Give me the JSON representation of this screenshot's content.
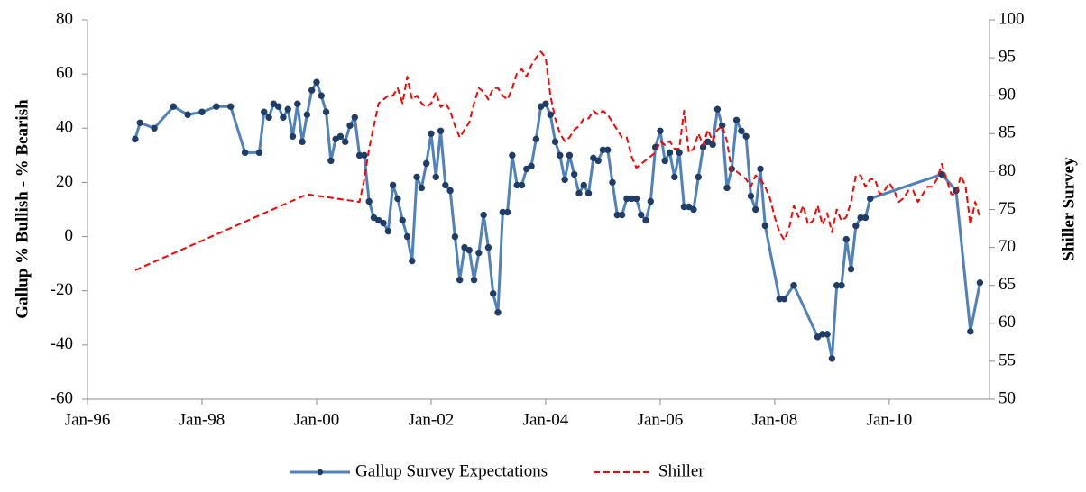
{
  "chart_data": {
    "type": "line",
    "y_title": "Gallup % Bullish - % Bearish",
    "y2_title": "Shiller Survey",
    "xlim": [
      "1996-01",
      "2011-10"
    ],
    "xticks": [
      {
        "value": "1996-01",
        "label": "Jan-96"
      },
      {
        "value": "1998-01",
        "label": "Jan-98"
      },
      {
        "value": "2000-01",
        "label": "Jan-00"
      },
      {
        "value": "2002-01",
        "label": "Jan-02"
      },
      {
        "value": "2004-01",
        "label": "Jan-04"
      },
      {
        "value": "2006-01",
        "label": "Jan-06"
      },
      {
        "value": "2008-01",
        "label": "Jan-08"
      },
      {
        "value": "2010-01",
        "label": "Jan-10"
      }
    ],
    "ylim": [
      -60,
      80
    ],
    "yticks": [
      -60,
      -40,
      -20,
      0,
      20,
      40,
      60,
      80
    ],
    "y2lim": [
      50,
      100
    ],
    "y2ticks": [
      50,
      55,
      60,
      65,
      70,
      75,
      80,
      85,
      90,
      95,
      100
    ],
    "grid": false,
    "legend": "bottom",
    "series": [
      {
        "name": "Gallup Survey Expectations",
        "color": "#4f81bd",
        "marker": true,
        "marker_color": "#1f3d66",
        "dashed": false,
        "axis": "y",
        "x": [
          "1996-11",
          "1996-12",
          "1997-03",
          "1997-07",
          "1997-10",
          "1998-01",
          "1998-04",
          "1998-07",
          "1998-10",
          "1999-01",
          "1999-02",
          "1999-03",
          "1999-04",
          "1999-05",
          "1999-06",
          "1999-07",
          "1999-08",
          "1999-09",
          "1999-10",
          "1999-11",
          "1999-12",
          "2000-01",
          "2000-02",
          "2000-03",
          "2000-04",
          "2000-05",
          "2000-06",
          "2000-07",
          "2000-08",
          "2000-09",
          "2000-10",
          "2000-11",
          "2000-12",
          "2001-01",
          "2001-02",
          "2001-03",
          "2001-04",
          "2001-05",
          "2001-06",
          "2001-07",
          "2001-08",
          "2001-09",
          "2001-10",
          "2001-11",
          "2001-12",
          "2002-01",
          "2002-02",
          "2002-03",
          "2002-04",
          "2002-05",
          "2002-06",
          "2002-07",
          "2002-08",
          "2002-09",
          "2002-10",
          "2002-11",
          "2002-12",
          "2003-01",
          "2003-02",
          "2003-03",
          "2003-04",
          "2003-05",
          "2003-06",
          "2003-07",
          "2003-08",
          "2003-09",
          "2003-10",
          "2003-11",
          "2003-12",
          "2004-01",
          "2004-02",
          "2004-03",
          "2004-04",
          "2004-05",
          "2004-06",
          "2004-07",
          "2004-08",
          "2004-09",
          "2004-10",
          "2004-11",
          "2004-12",
          "2005-01",
          "2005-02",
          "2005-03",
          "2005-04",
          "2005-05",
          "2005-06",
          "2005-07",
          "2005-08",
          "2005-09",
          "2005-10",
          "2005-11",
          "2005-12",
          "2006-01",
          "2006-02",
          "2006-03",
          "2006-04",
          "2006-05",
          "2006-06",
          "2006-07",
          "2006-08",
          "2006-09",
          "2006-10",
          "2006-11",
          "2006-12",
          "2007-01",
          "2007-02",
          "2007-03",
          "2007-04",
          "2007-05",
          "2007-06",
          "2007-07",
          "2007-08",
          "2007-09",
          "2007-10",
          "2007-11",
          "2008-02",
          "2008-03",
          "2008-05",
          "2008-10",
          "2008-11",
          "2008-12",
          "2009-01",
          "2009-02",
          "2009-03",
          "2009-04",
          "2009-05",
          "2009-06",
          "2009-07",
          "2009-08",
          "2009-09",
          "2010-12",
          "2011-03",
          "2011-06",
          "2011-08"
        ],
        "values": [
          36,
          42,
          40,
          48,
          45,
          46,
          48,
          48,
          31,
          31,
          46,
          44,
          49,
          48,
          44,
          47,
          37,
          49,
          35,
          45,
          54,
          57,
          52,
          46,
          28,
          36,
          37,
          35,
          41,
          44,
          30,
          30,
          13,
          7,
          6,
          5,
          2,
          19,
          14,
          6,
          0,
          -9,
          22,
          18,
          27,
          38,
          22,
          39,
          19,
          17,
          0,
          -16,
          -4,
          -5,
          -16,
          -6,
          8,
          -4,
          -21,
          -28,
          9,
          9,
          30,
          19,
          19,
          25,
          26,
          36,
          48,
          49,
          45,
          35,
          30,
          21,
          30,
          23,
          16,
          19,
          16,
          29,
          28,
          32,
          32,
          20,
          8,
          8,
          14,
          14,
          14,
          8,
          6,
          13,
          33,
          39,
          28,
          31,
          22,
          31,
          11,
          11,
          10,
          22,
          33,
          35,
          34,
          47,
          41,
          18,
          25,
          43,
          39,
          37,
          15,
          10,
          25,
          4,
          -23,
          -23,
          -18,
          -37,
          -36,
          -36,
          -45,
          -18,
          -18,
          -1,
          -12,
          4,
          7,
          7,
          14,
          23,
          17,
          -35,
          -17
        ]
      },
      {
        "name": "Shiller",
        "color": "#ff0000",
        "marker": false,
        "dashed": true,
        "axis": "y2",
        "x": [
          "1996-11",
          "1999-11",
          "2000-10",
          "2000-11",
          "2000-12",
          "2001-01",
          "2001-02",
          "2001-03",
          "2001-04",
          "2001-05",
          "2001-06",
          "2001-07",
          "2001-08",
          "2001-09",
          "2001-10",
          "2001-11",
          "2001-12",
          "2002-01",
          "2002-02",
          "2002-03",
          "2002-04",
          "2002-05",
          "2002-06",
          "2002-07",
          "2002-08",
          "2002-09",
          "2002-10",
          "2002-11",
          "2002-12",
          "2003-01",
          "2003-02",
          "2003-03",
          "2003-04",
          "2003-05",
          "2003-06",
          "2003-07",
          "2003-08",
          "2003-09",
          "2003-10",
          "2003-11",
          "2003-12",
          "2004-01",
          "2004-02",
          "2004-03",
          "2004-04",
          "2004-05",
          "2004-06",
          "2004-07",
          "2004-08",
          "2004-09",
          "2004-10",
          "2004-11",
          "2004-12",
          "2005-01",
          "2005-02",
          "2005-03",
          "2005-04",
          "2005-05",
          "2005-06",
          "2005-07",
          "2005-08",
          "2005-09",
          "2005-10",
          "2005-11",
          "2005-12",
          "2006-01",
          "2006-02",
          "2006-03",
          "2006-04",
          "2006-05",
          "2006-06",
          "2006-07",
          "2006-08",
          "2006-09",
          "2006-10",
          "2006-11",
          "2006-12",
          "2007-01",
          "2007-02",
          "2007-03",
          "2007-04",
          "2007-05",
          "2007-06",
          "2007-07",
          "2007-08",
          "2007-09",
          "2007-10",
          "2007-11",
          "2007-12",
          "2008-01",
          "2008-02",
          "2008-03",
          "2008-04",
          "2008-05",
          "2008-06",
          "2008-07",
          "2008-08",
          "2008-09",
          "2008-10",
          "2008-11",
          "2008-12",
          "2009-01",
          "2009-02",
          "2009-03",
          "2009-04",
          "2009-05",
          "2009-06",
          "2009-07",
          "2009-08",
          "2009-09",
          "2009-10",
          "2009-11",
          "2009-12",
          "2010-01",
          "2010-02",
          "2010-03",
          "2010-04",
          "2010-05",
          "2010-06",
          "2010-07",
          "2010-08",
          "2010-09",
          "2010-10",
          "2010-11",
          "2010-12",
          "2011-01",
          "2011-02",
          "2011-03",
          "2011-04",
          "2011-05",
          "2011-06",
          "2011-07",
          "2011-08"
        ],
        "values": [
          67,
          77,
          76,
          79,
          83,
          86,
          89,
          89.5,
          90,
          90,
          91,
          89,
          92.5,
          89.5,
          90,
          89,
          88.5,
          89,
          90.5,
          88.5,
          89,
          88,
          86,
          84.5,
          85.5,
          86.5,
          89,
          91,
          90.5,
          89.5,
          91,
          91,
          90,
          89.5,
          91,
          93,
          93.5,
          92.5,
          94,
          95,
          95.8,
          95,
          90,
          87,
          85,
          84,
          84.5,
          85.5,
          86,
          87,
          87,
          88,
          87.5,
          88,
          87.5,
          86.5,
          85.5,
          84.5,
          84.5,
          82,
          80.5,
          81,
          81.5,
          82,
          82.5,
          84,
          83.5,
          84,
          83,
          83,
          88,
          82.5,
          83,
          85,
          83.5,
          85.5,
          84,
          85.5,
          86,
          84,
          80,
          80,
          79.5,
          79,
          78,
          79.5,
          79,
          78,
          76.5,
          74,
          72,
          71,
          72.5,
          75.5,
          74,
          75.5,
          73,
          73.5,
          75.5,
          73,
          74.5,
          72,
          75,
          73.5,
          74,
          76,
          79.5,
          79.5,
          78,
          79,
          79,
          77,
          77.5,
          78.5,
          77.5,
          76,
          76.5,
          77.5,
          77.5,
          76,
          77,
          78,
          78,
          79,
          81,
          79,
          77,
          77,
          79.5,
          78,
          73,
          76,
          74
        ]
      }
    ]
  }
}
